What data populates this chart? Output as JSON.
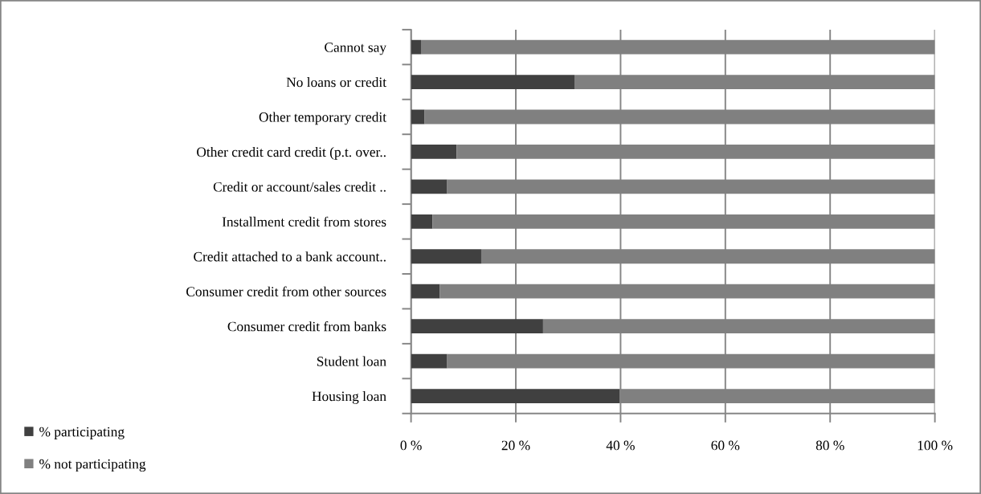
{
  "chart_data": {
    "type": "bar",
    "orientation": "horizontal",
    "stacked": true,
    "categories": [
      "Cannot say",
      "No loans or credit",
      "Other temporary credit",
      "Other credit card credit (p.t. over..",
      "Credit or account/sales credit ..",
      "Installment credit from stores",
      "Credit attached to a bank account..",
      "Consumer credit from other sources",
      "Consumer credit from banks",
      "Student loan",
      "Housing loan"
    ],
    "series": [
      {
        "name": "% participating",
        "color": "#404040",
        "values": [
          1.9,
          31.2,
          2.6,
          8.7,
          6.9,
          4.1,
          13.4,
          5.5,
          25.2,
          6.9,
          39.8
        ]
      },
      {
        "name": "% not participating",
        "color": "#808080",
        "values": [
          98.1,
          68.8,
          97.4,
          91.3,
          93.1,
          95.9,
          86.6,
          94.5,
          74.8,
          93.1,
          60.2
        ]
      }
    ],
    "xlim": [
      0,
      100
    ],
    "xticks": [
      {
        "value": 0,
        "label": "0 %"
      },
      {
        "value": 20,
        "label": "20 %"
      },
      {
        "value": 40,
        "label": "40 %"
      },
      {
        "value": 60,
        "label": "60 %"
      },
      {
        "value": 80,
        "label": "80 %"
      },
      {
        "value": 100,
        "label": "100 %"
      }
    ],
    "grid": "x",
    "legend": "bottom left"
  }
}
